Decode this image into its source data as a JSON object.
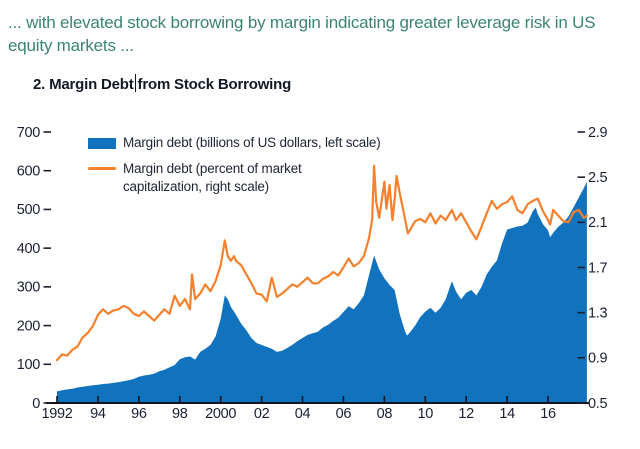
{
  "header": {
    "lead_text": "... with elevated stock borrowing by margin indicating greater leverage risk in US equity markets ...",
    "lead_color": "#3B8473"
  },
  "chart": {
    "title_before_cursor": "2. Margin Debt",
    "title_after_cursor": "from Stock Borrowing"
  },
  "colors": {
    "axis_text": "#1B2130",
    "axis_line": "#10141C",
    "title_text": "#141926",
    "legend_text": "#1E2533",
    "area_blue": "#1173BE",
    "line_orange": "#F5812C",
    "background": "#FFFFFF"
  },
  "chart_data": {
    "type": "area+line",
    "title": "2. Margin Debt from Stock Borrowing",
    "grid": false,
    "legend_position": "top-left",
    "x_axis": {
      "tick_years": [
        1992,
        1994,
        1996,
        1998,
        2000,
        2002,
        2004,
        2006,
        2008,
        2010,
        2012,
        2014,
        2016
      ],
      "tick_labels": [
        "1992",
        "94",
        "96",
        "98",
        "2000",
        "02",
        "04",
        "06",
        "08",
        "10",
        "12",
        "14",
        "16"
      ],
      "data_start_year": 1992.0,
      "data_end_year": 2017.9
    },
    "left_axis": {
      "label": "Margin debt (billions of US dollars)",
      "ticks": [
        0,
        100,
        200,
        300,
        400,
        500,
        600,
        700
      ],
      "range": [
        0,
        700
      ]
    },
    "right_axis": {
      "label": "Margin debt (percent of market capitalization)",
      "ticks": [
        0.5,
        0.9,
        1.3,
        1.7,
        2.1,
        2.5,
        2.9
      ],
      "range": [
        0.5,
        2.9
      ]
    },
    "series": [
      {
        "label": "Margin debt (billions of US dollars, left scale)",
        "type": "area",
        "axis": "left",
        "color": "#1173BE",
        "points": [
          [
            1992.0,
            30
          ],
          [
            1992.25,
            33
          ],
          [
            1992.5,
            35
          ],
          [
            1992.75,
            37
          ],
          [
            1993.0,
            40
          ],
          [
            1993.25,
            42
          ],
          [
            1993.5,
            44
          ],
          [
            1993.75,
            46
          ],
          [
            1994.0,
            47
          ],
          [
            1994.25,
            49
          ],
          [
            1994.5,
            50
          ],
          [
            1994.75,
            52
          ],
          [
            1995.0,
            54
          ],
          [
            1995.25,
            56
          ],
          [
            1995.5,
            59
          ],
          [
            1995.75,
            62
          ],
          [
            1996.0,
            68
          ],
          [
            1996.25,
            71
          ],
          [
            1996.5,
            73
          ],
          [
            1996.75,
            76
          ],
          [
            1997.0,
            82
          ],
          [
            1997.25,
            86
          ],
          [
            1997.5,
            92
          ],
          [
            1997.75,
            98
          ],
          [
            1998.0,
            113
          ],
          [
            1998.25,
            118
          ],
          [
            1998.5,
            120
          ],
          [
            1998.75,
            112
          ],
          [
            1999.0,
            132
          ],
          [
            1999.25,
            140
          ],
          [
            1999.5,
            150
          ],
          [
            1999.75,
            172
          ],
          [
            2000.0,
            218
          ],
          [
            2000.2,
            278
          ],
          [
            2000.35,
            268
          ],
          [
            2000.5,
            248
          ],
          [
            2000.75,
            228
          ],
          [
            2001.0,
            205
          ],
          [
            2001.25,
            188
          ],
          [
            2001.5,
            168
          ],
          [
            2001.75,
            155
          ],
          [
            2002.0,
            150
          ],
          [
            2002.25,
            145
          ],
          [
            2002.5,
            140
          ],
          [
            2002.75,
            132
          ],
          [
            2003.0,
            135
          ],
          [
            2003.25,
            142
          ],
          [
            2003.5,
            150
          ],
          [
            2003.75,
            160
          ],
          [
            2004.0,
            168
          ],
          [
            2004.25,
            176
          ],
          [
            2004.5,
            180
          ],
          [
            2004.75,
            184
          ],
          [
            2005.0,
            195
          ],
          [
            2005.25,
            202
          ],
          [
            2005.5,
            212
          ],
          [
            2005.75,
            220
          ],
          [
            2006.0,
            235
          ],
          [
            2006.25,
            250
          ],
          [
            2006.5,
            242
          ],
          [
            2006.75,
            258
          ],
          [
            2007.0,
            278
          ],
          [
            2007.25,
            330
          ],
          [
            2007.5,
            381
          ],
          [
            2007.75,
            345
          ],
          [
            2008.0,
            322
          ],
          [
            2008.25,
            305
          ],
          [
            2008.5,
            292
          ],
          [
            2008.75,
            230
          ],
          [
            2009.0,
            187
          ],
          [
            2009.1,
            174
          ],
          [
            2009.25,
            182
          ],
          [
            2009.5,
            200
          ],
          [
            2009.75,
            222
          ],
          [
            2010.0,
            236
          ],
          [
            2010.25,
            246
          ],
          [
            2010.5,
            233
          ],
          [
            2010.75,
            246
          ],
          [
            2011.0,
            268
          ],
          [
            2011.3,
            315
          ],
          [
            2011.5,
            288
          ],
          [
            2011.75,
            268
          ],
          [
            2012.0,
            285
          ],
          [
            2012.25,
            292
          ],
          [
            2012.5,
            278
          ],
          [
            2012.75,
            300
          ],
          [
            2013.0,
            332
          ],
          [
            2013.25,
            352
          ],
          [
            2013.5,
            368
          ],
          [
            2013.75,
            412
          ],
          [
            2014.0,
            448
          ],
          [
            2014.25,
            452
          ],
          [
            2014.5,
            456
          ],
          [
            2014.75,
            458
          ],
          [
            2015.0,
            466
          ],
          [
            2015.25,
            495
          ],
          [
            2015.4,
            505
          ],
          [
            2015.5,
            488
          ],
          [
            2015.75,
            462
          ],
          [
            2016.0,
            446
          ],
          [
            2016.1,
            428
          ],
          [
            2016.25,
            440
          ],
          [
            2016.5,
            455
          ],
          [
            2016.75,
            466
          ],
          [
            2017.0,
            482
          ],
          [
            2017.25,
            506
          ],
          [
            2017.5,
            530
          ],
          [
            2017.75,
            555
          ],
          [
            2017.9,
            572
          ]
        ]
      },
      {
        "label": "Margin debt (percent of market capitalization, right scale)",
        "type": "line",
        "axis": "right",
        "color": "#F5812C",
        "points": [
          [
            1992.0,
            0.88
          ],
          [
            1992.25,
            0.93
          ],
          [
            1992.5,
            0.92
          ],
          [
            1992.75,
            0.97
          ],
          [
            1993.0,
            1.0
          ],
          [
            1993.25,
            1.08
          ],
          [
            1993.5,
            1.12
          ],
          [
            1993.75,
            1.18
          ],
          [
            1994.0,
            1.28
          ],
          [
            1994.25,
            1.33
          ],
          [
            1994.5,
            1.29
          ],
          [
            1994.75,
            1.32
          ],
          [
            1995.0,
            1.33
          ],
          [
            1995.25,
            1.36
          ],
          [
            1995.5,
            1.34
          ],
          [
            1995.75,
            1.29
          ],
          [
            1996.0,
            1.27
          ],
          [
            1996.25,
            1.31
          ],
          [
            1996.5,
            1.27
          ],
          [
            1996.75,
            1.23
          ],
          [
            1997.0,
            1.28
          ],
          [
            1997.25,
            1.33
          ],
          [
            1997.5,
            1.29
          ],
          [
            1997.75,
            1.45
          ],
          [
            1998.0,
            1.36
          ],
          [
            1998.25,
            1.42
          ],
          [
            1998.5,
            1.33
          ],
          [
            1998.6,
            1.64
          ],
          [
            1998.75,
            1.42
          ],
          [
            1999.0,
            1.47
          ],
          [
            1999.25,
            1.55
          ],
          [
            1999.5,
            1.49
          ],
          [
            1999.75,
            1.58
          ],
          [
            2000.0,
            1.72
          ],
          [
            2000.2,
            1.94
          ],
          [
            2000.35,
            1.8
          ],
          [
            2000.5,
            1.76
          ],
          [
            2000.65,
            1.8
          ],
          [
            2000.75,
            1.76
          ],
          [
            2001.0,
            1.72
          ],
          [
            2001.25,
            1.64
          ],
          [
            2001.5,
            1.56
          ],
          [
            2001.75,
            1.47
          ],
          [
            2002.0,
            1.46
          ],
          [
            2002.25,
            1.4
          ],
          [
            2002.5,
            1.61
          ],
          [
            2002.75,
            1.44
          ],
          [
            2003.0,
            1.47
          ],
          [
            2003.25,
            1.51
          ],
          [
            2003.5,
            1.55
          ],
          [
            2003.75,
            1.53
          ],
          [
            2004.0,
            1.57
          ],
          [
            2004.25,
            1.61
          ],
          [
            2004.5,
            1.56
          ],
          [
            2004.75,
            1.56
          ],
          [
            2005.0,
            1.6
          ],
          [
            2005.25,
            1.62
          ],
          [
            2005.5,
            1.66
          ],
          [
            2005.75,
            1.63
          ],
          [
            2006.0,
            1.7
          ],
          [
            2006.25,
            1.78
          ],
          [
            2006.5,
            1.71
          ],
          [
            2006.75,
            1.74
          ],
          [
            2007.0,
            1.8
          ],
          [
            2007.25,
            1.96
          ],
          [
            2007.4,
            2.12
          ],
          [
            2007.5,
            2.6
          ],
          [
            2007.6,
            2.28
          ],
          [
            2007.75,
            2.14
          ],
          [
            2008.0,
            2.46
          ],
          [
            2008.1,
            2.22
          ],
          [
            2008.25,
            2.43
          ],
          [
            2008.4,
            2.12
          ],
          [
            2008.5,
            2.3
          ],
          [
            2008.6,
            2.51
          ],
          [
            2008.75,
            2.36
          ],
          [
            2009.0,
            2.14
          ],
          [
            2009.15,
            2.0
          ],
          [
            2009.25,
            2.03
          ],
          [
            2009.5,
            2.11
          ],
          [
            2009.75,
            2.13
          ],
          [
            2010.0,
            2.1
          ],
          [
            2010.25,
            2.18
          ],
          [
            2010.5,
            2.09
          ],
          [
            2010.75,
            2.16
          ],
          [
            2011.0,
            2.12
          ],
          [
            2011.3,
            2.21
          ],
          [
            2011.5,
            2.12
          ],
          [
            2011.75,
            2.18
          ],
          [
            2012.0,
            2.1
          ],
          [
            2012.25,
            2.02
          ],
          [
            2012.5,
            1.95
          ],
          [
            2012.75,
            2.06
          ],
          [
            2013.0,
            2.18
          ],
          [
            2013.25,
            2.29
          ],
          [
            2013.5,
            2.22
          ],
          [
            2013.75,
            2.26
          ],
          [
            2014.0,
            2.28
          ],
          [
            2014.25,
            2.33
          ],
          [
            2014.5,
            2.21
          ],
          [
            2014.75,
            2.18
          ],
          [
            2015.0,
            2.26
          ],
          [
            2015.25,
            2.29
          ],
          [
            2015.5,
            2.31
          ],
          [
            2015.75,
            2.2
          ],
          [
            2016.0,
            2.12
          ],
          [
            2016.1,
            2.08
          ],
          [
            2016.25,
            2.21
          ],
          [
            2016.5,
            2.16
          ],
          [
            2016.75,
            2.11
          ],
          [
            2017.0,
            2.1
          ],
          [
            2017.25,
            2.19
          ],
          [
            2017.5,
            2.21
          ],
          [
            2017.75,
            2.14
          ],
          [
            2017.9,
            2.16
          ]
        ]
      }
    ]
  }
}
